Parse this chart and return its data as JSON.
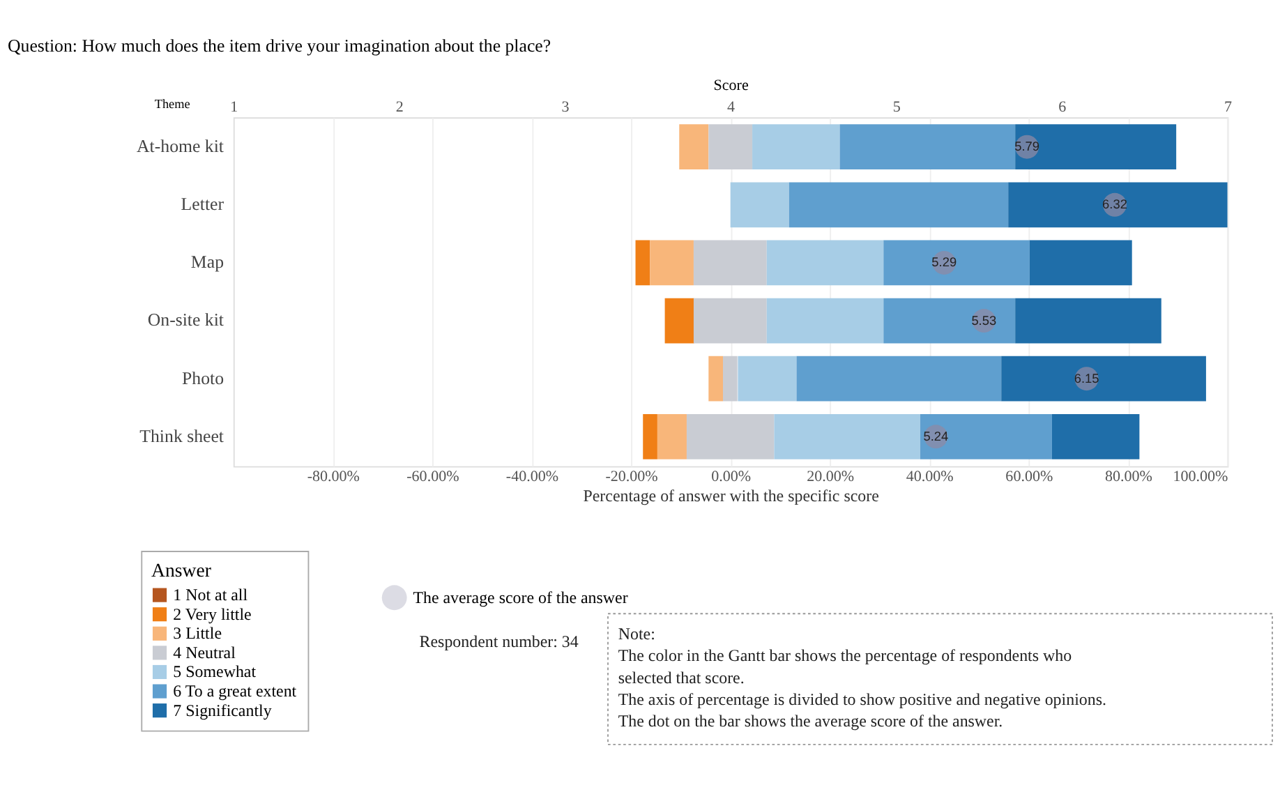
{
  "chart_data": {
    "type": "bar",
    "orientation": "horizontal",
    "title": "Question: How much does the item drive your imagination about the place?",
    "xlabel": "Percentage of answer with the specific score",
    "ylabel": "Theme",
    "x2label": "Score",
    "legend_title": "Answer",
    "categories": [
      "At-home kit",
      "Letter",
      "Map",
      "On-site kit",
      "Photo",
      "Think sheet"
    ],
    "xlim": [
      -100,
      100
    ],
    "xticks": [
      {
        "value": -80,
        "label": "-80.00%"
      },
      {
        "value": -60,
        "label": "-60.00%"
      },
      {
        "value": -40,
        "label": "-40.00%"
      },
      {
        "value": -20,
        "label": "-20.00%"
      },
      {
        "value": 0,
        "label": "0.00%"
      },
      {
        "value": 20,
        "label": "20.00%"
      },
      {
        "value": 40,
        "label": "40.00%"
      },
      {
        "value": 60,
        "label": "60.00%"
      },
      {
        "value": 80,
        "label": "80.00%"
      },
      {
        "value": 100,
        "label": "100.00%"
      }
    ],
    "x2lim": [
      1,
      7
    ],
    "x2ticks": [
      1,
      2,
      3,
      4,
      5,
      6,
      7
    ],
    "grid": "x",
    "legend": "bottom left",
    "series": [
      {
        "name": "1 Not at all",
        "color": "#b5561f",
        "values": [
          null,
          null,
          null,
          null,
          null,
          null
        ],
        "base": [
          null,
          null,
          null,
          null,
          null,
          null
        ]
      },
      {
        "name": "2 Very little",
        "color": "#f07f16",
        "values": [
          null,
          null,
          2.9,
          5.9,
          null,
          2.9
        ],
        "base": [
          null,
          null,
          -19.1,
          -13.2,
          null,
          -17.6
        ]
      },
      {
        "name": "3 Little",
        "color": "#f8b67a",
        "values": [
          5.9,
          null,
          8.8,
          null,
          2.9,
          5.9
        ],
        "base": [
          -10.3,
          null,
          -16.2,
          null,
          -4.4,
          -14.7
        ]
      },
      {
        "name": "4 Neutral",
        "color": "#c9ccd3",
        "values": [
          8.8,
          null,
          14.7,
          14.7,
          2.9,
          17.6
        ],
        "base": [
          -4.4,
          null,
          -7.4,
          -7.4,
          -1.5,
          -8.8
        ]
      },
      {
        "name": "5 Somewhat",
        "color": "#a7cde6",
        "values": [
          17.6,
          11.8,
          23.5,
          23.5,
          11.8,
          29.4
        ],
        "base": [
          4.4,
          0,
          7.3,
          7.3,
          1.5,
          8.8
        ]
      },
      {
        "name": "6 To a great extent",
        "color": "#5f9fcf",
        "values": [
          35.3,
          44.1,
          29.4,
          26.5,
          41.2,
          26.5
        ],
        "base": [
          22.0,
          11.8,
          30.8,
          30.8,
          13.3,
          38.2
        ]
      },
      {
        "name": "7 Significantly",
        "color": "#1f6ea9",
        "values": [
          32.4,
          44.1,
          20.6,
          29.4,
          41.2,
          17.6
        ],
        "base": [
          57.3,
          55.9,
          60.2,
          57.3,
          54.5,
          64.7
        ]
      },
      {
        "name": "The average score of the answer",
        "type": "scatter",
        "axis": "x2",
        "marker": "circle",
        "color": "#8c8aa6",
        "values": [
          5.79,
          6.32,
          5.29,
          5.53,
          6.15,
          5.24
        ],
        "value_labels": [
          "5.79",
          "6.32",
          "5.29",
          "5.53",
          "6.15",
          "5.24"
        ]
      }
    ],
    "annotations": [
      "Respondent number: 34",
      "Note:\nThe color in the Gantt bar shows the percentage of respondents who\nselected that score.\nThe axis of percentage is divided to show positive and negative opinions.\nThe dot on the bar shows the average score of the answer."
    ]
  }
}
